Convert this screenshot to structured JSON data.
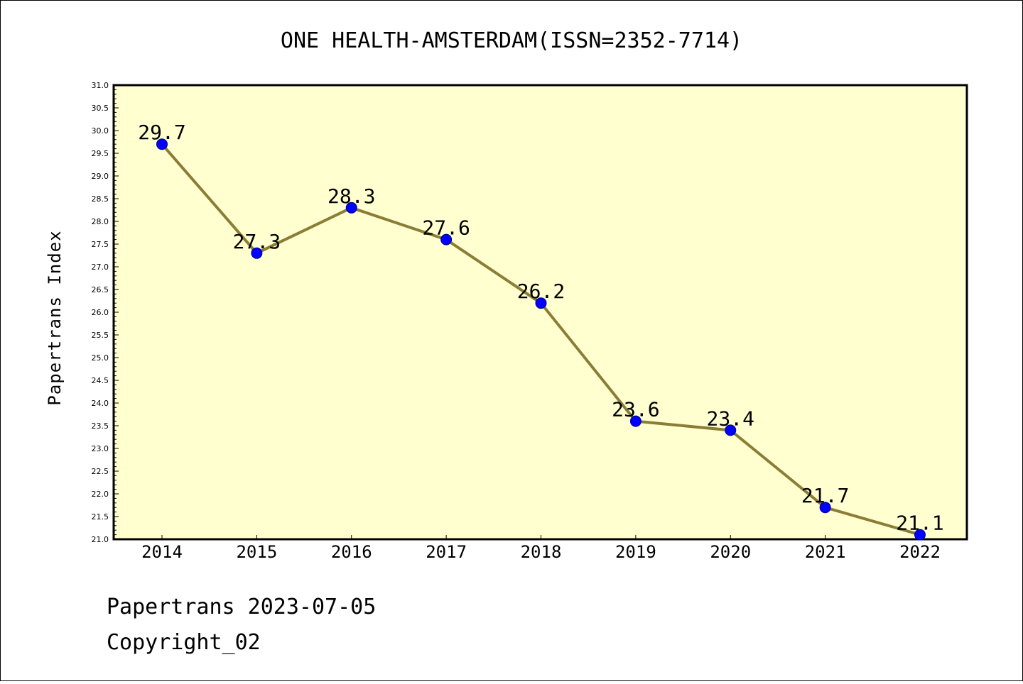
{
  "chart_data": {
    "type": "line",
    "title": "ONE HEALTH-AMSTERDAM(ISSN=2352-7714)",
    "xlabel": "",
    "ylabel": "Papertrans Index",
    "categories": [
      "2014",
      "2015",
      "2016",
      "2017",
      "2018",
      "2019",
      "2020",
      "2021",
      "2022"
    ],
    "series": [
      {
        "values": [
          29.7,
          27.3,
          28.3,
          27.6,
          26.2,
          23.6,
          23.4,
          21.7,
          21.1
        ],
        "data_labels": [
          "29.7",
          "27.3",
          "28.3",
          "27.6",
          "26.2",
          "23.6",
          "23.4",
          "21.7",
          "21.1"
        ]
      }
    ],
    "ylim": [
      21.0,
      31.0
    ],
    "yticks": [
      "21.0",
      "21.5",
      "22.0",
      "22.5",
      "23.0",
      "23.5",
      "24.0",
      "24.5",
      "25.0",
      "25.5",
      "26.0",
      "26.5",
      "27.0",
      "27.5",
      "28.0",
      "28.5",
      "29.0",
      "29.5",
      "30.0",
      "30.5",
      "31.0"
    ],
    "grid": false,
    "colors": {
      "plot_background": "#ffffd0",
      "line": "#8b7d35",
      "marker": "#0000ff"
    }
  },
  "footer": {
    "line1": "Papertrans 2023-07-05",
    "line2": "Copyright_02"
  }
}
